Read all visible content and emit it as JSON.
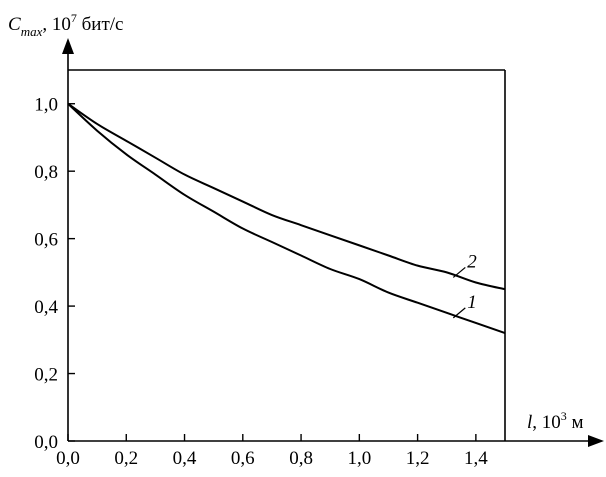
{
  "chart_data": {
    "type": "line",
    "ylabel": {
      "symbol": "C",
      "subscript": "max",
      "rest_prefix": ", 10",
      "exponent": "7",
      "rest_suffix": " бит/с"
    },
    "xlabel": {
      "symbol": "l",
      "rest_prefix": ", 10",
      "exponent": "3",
      "rest_suffix": " м"
    },
    "xlim": [
      0,
      1.5
    ],
    "ylim": [
      0,
      1.1
    ],
    "x_ticks": [
      "0,0",
      "0,2",
      "0,4",
      "0,6",
      "0,8",
      "1,0",
      "1,2",
      "1,4"
    ],
    "x_tick_values": [
      0,
      0.2,
      0.4,
      0.6,
      0.8,
      1.0,
      1.2,
      1.4
    ],
    "y_ticks": [
      "0,0",
      "0,2",
      "0,4",
      "0,6",
      "0,8",
      "1,0"
    ],
    "y_tick_values": [
      0,
      0.2,
      0.4,
      0.6,
      0.8,
      1.0
    ],
    "grid": false,
    "series": [
      {
        "name": "1",
        "x": [
          0,
          0.1,
          0.2,
          0.3,
          0.4,
          0.5,
          0.6,
          0.7,
          0.8,
          0.9,
          1.0,
          1.1,
          1.2,
          1.3,
          1.4,
          1.5
        ],
        "values": [
          1.0,
          0.92,
          0.85,
          0.79,
          0.73,
          0.68,
          0.63,
          0.59,
          0.55,
          0.51,
          0.48,
          0.44,
          0.41,
          0.38,
          0.35,
          0.32
        ]
      },
      {
        "name": "2",
        "x": [
          0,
          0.1,
          0.2,
          0.3,
          0.4,
          0.5,
          0.6,
          0.7,
          0.8,
          0.9,
          1.0,
          1.1,
          1.2,
          1.3,
          1.4,
          1.5
        ],
        "values": [
          1.0,
          0.94,
          0.89,
          0.84,
          0.79,
          0.75,
          0.71,
          0.67,
          0.64,
          0.61,
          0.58,
          0.55,
          0.52,
          0.5,
          0.47,
          0.45
        ]
      }
    ]
  }
}
